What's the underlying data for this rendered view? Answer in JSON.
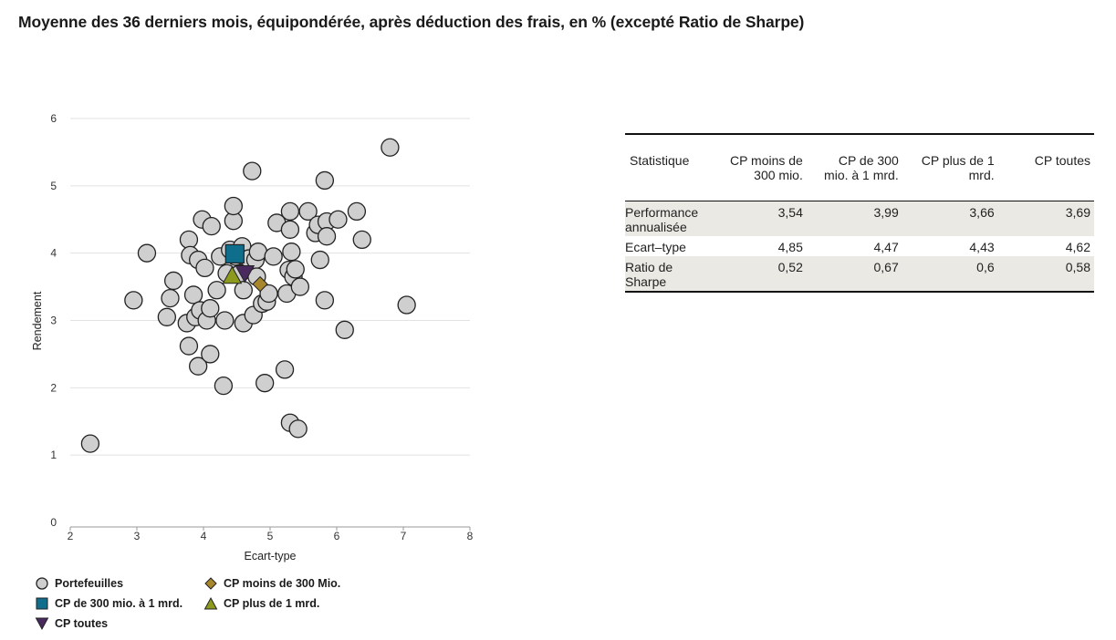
{
  "title": "Moyenne des 36 derniers mois, équipondérée, après déduction des frais, en % (excepté Ratio de Sharpe)",
  "chart_data": {
    "type": "scatter",
    "xlabel": "Ecart-type",
    "ylabel": "Rendement",
    "xlim": [
      2,
      8
    ],
    "ylim": [
      0,
      6
    ],
    "x_ticks": [
      "2",
      "3",
      "4",
      "5",
      "6",
      "7",
      "8"
    ],
    "y_ticks": [
      "0",
      "1",
      "2",
      "3",
      "4",
      "5",
      "6"
    ],
    "grid": "horizontal",
    "colors": {
      "portefeuilles": "#cfcfcf",
      "cp_moins_300": "#a8862c",
      "cp_300_1mrd": "#0e6e8c",
      "cp_plus_1mrd": "#8c9a1e",
      "cp_toutes": "#4a2a5e"
    },
    "series": [
      {
        "name": "Portefeuilles",
        "marker": "circle",
        "points": [
          [
            2.3,
            1.17
          ],
          [
            2.95,
            3.3
          ],
          [
            3.15,
            4.0
          ],
          [
            3.45,
            3.05
          ],
          [
            3.5,
            3.33
          ],
          [
            3.55,
            3.59
          ],
          [
            3.75,
            2.96
          ],
          [
            3.78,
            2.62
          ],
          [
            3.78,
            4.2
          ],
          [
            3.8,
            3.97
          ],
          [
            3.85,
            3.38
          ],
          [
            3.88,
            3.05
          ],
          [
            3.92,
            2.32
          ],
          [
            3.92,
            3.9
          ],
          [
            3.95,
            3.15
          ],
          [
            3.98,
            4.5
          ],
          [
            4.02,
            3.78
          ],
          [
            4.05,
            3.0
          ],
          [
            4.1,
            2.5
          ],
          [
            4.1,
            3.18
          ],
          [
            4.12,
            4.4
          ],
          [
            4.2,
            3.45
          ],
          [
            4.25,
            3.95
          ],
          [
            4.3,
            2.03
          ],
          [
            4.32,
            3.0
          ],
          [
            4.35,
            3.7
          ],
          [
            4.4,
            4.05
          ],
          [
            4.45,
            4.48
          ],
          [
            4.45,
            4.7
          ],
          [
            4.48,
            3.95
          ],
          [
            4.55,
            3.7
          ],
          [
            4.58,
            4.1
          ],
          [
            4.6,
            3.45
          ],
          [
            4.6,
            2.96
          ],
          [
            4.68,
            3.92
          ],
          [
            4.73,
            5.22
          ],
          [
            4.75,
            3.08
          ],
          [
            4.78,
            3.9
          ],
          [
            4.8,
            3.65
          ],
          [
            4.82,
            4.02
          ],
          [
            4.88,
            3.25
          ],
          [
            4.92,
            2.07
          ],
          [
            4.95,
            3.28
          ],
          [
            4.98,
            3.4
          ],
          [
            5.05,
            3.95
          ],
          [
            5.1,
            4.45
          ],
          [
            5.22,
            2.27
          ],
          [
            5.25,
            3.4
          ],
          [
            5.28,
            3.75
          ],
          [
            5.3,
            4.35
          ],
          [
            5.3,
            4.62
          ],
          [
            5.3,
            1.48
          ],
          [
            5.32,
            4.02
          ],
          [
            5.35,
            3.65
          ],
          [
            5.38,
            3.76
          ],
          [
            5.42,
            1.39
          ],
          [
            5.45,
            3.5
          ],
          [
            5.57,
            4.62
          ],
          [
            5.68,
            4.3
          ],
          [
            5.72,
            4.42
          ],
          [
            5.75,
            3.9
          ],
          [
            5.82,
            3.3
          ],
          [
            5.82,
            5.08
          ],
          [
            5.85,
            4.47
          ],
          [
            5.85,
            4.25
          ],
          [
            6.02,
            4.5
          ],
          [
            6.12,
            2.86
          ],
          [
            6.3,
            4.62
          ],
          [
            6.38,
            4.2
          ],
          [
            6.8,
            5.57
          ],
          [
            7.05,
            3.23
          ]
        ]
      },
      {
        "name": "CP moins de 300 Mio.",
        "marker": "diamond",
        "points": [
          [
            4.85,
            3.54
          ]
        ]
      },
      {
        "name": "CP de 300 mio. à 1 mrd.",
        "marker": "square",
        "points": [
          [
            4.47,
            3.99
          ]
        ]
      },
      {
        "name": "CP plus de 1 mrd.",
        "marker": "triangle-up",
        "points": [
          [
            4.43,
            3.66
          ]
        ]
      },
      {
        "name": "CP toutes",
        "marker": "triangle-down",
        "points": [
          [
            4.62,
            3.69
          ]
        ]
      }
    ]
  },
  "legend": {
    "portefeuilles": "Portefeuilles",
    "cp_moins_300": "CP moins de 300 Mio.",
    "cp_300_1mrd": "CP de 300 mio. à 1 mrd.",
    "cp_plus_1mrd": "CP plus de 1 mrd.",
    "cp_toutes": "CP toutes"
  },
  "table": {
    "headers": [
      "Statistique",
      "CP moins de 300 mio.",
      "CP de 300 mio. à 1 mrd.",
      "CP plus de 1 mrd.",
      "CP toutes"
    ],
    "rows": [
      {
        "label": "Performance annualisée",
        "values": [
          "3,54",
          "3,99",
          "3,66",
          "3,69"
        ]
      },
      {
        "label": "Ecart–type",
        "values": [
          "4,85",
          "4,47",
          "4,43",
          "4,62"
        ]
      },
      {
        "label": "Ratio de Sharpe",
        "values": [
          "0,52",
          "0,67",
          "0,6",
          "0,58"
        ]
      }
    ]
  }
}
